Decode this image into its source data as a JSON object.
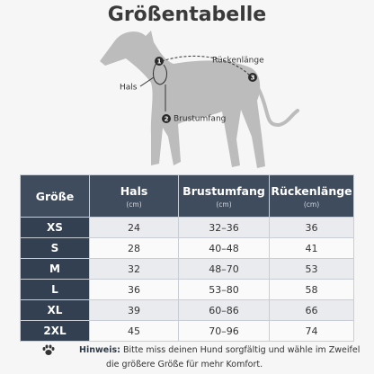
{
  "header": {
    "title": "Größentabelle"
  },
  "diagram": {
    "labels": {
      "neck": "Hals",
      "back": "Rückenlänge",
      "chest": "Brustumfang"
    },
    "markers": [
      "1",
      "2",
      "3"
    ]
  },
  "table": {
    "columns": [
      {
        "label": "Größe"
      },
      {
        "label": "Hals",
        "unit": "(cm)"
      },
      {
        "label": "Brustumfang",
        "unit": "(cm)"
      },
      {
        "label": "Rückenlänge",
        "unit": "(cm)"
      }
    ],
    "rows": [
      [
        "XS",
        24,
        "32–36",
        36
      ],
      [
        "S",
        28,
        "40–48",
        41
      ],
      [
        "M",
        32,
        "48–70",
        53
      ],
      [
        "L",
        36,
        "53–80",
        58
      ],
      [
        "XL",
        39,
        "60–86",
        66
      ],
      [
        "2XL",
        45,
        "70–96",
        74
      ]
    ]
  },
  "note": {
    "label": "Hinweis:",
    "lines": [
      "Bitte miss deinen Hund sorgfältig und wähle im Zweifel",
      "die größere Größe für mehr Komfort."
    ]
  }
}
